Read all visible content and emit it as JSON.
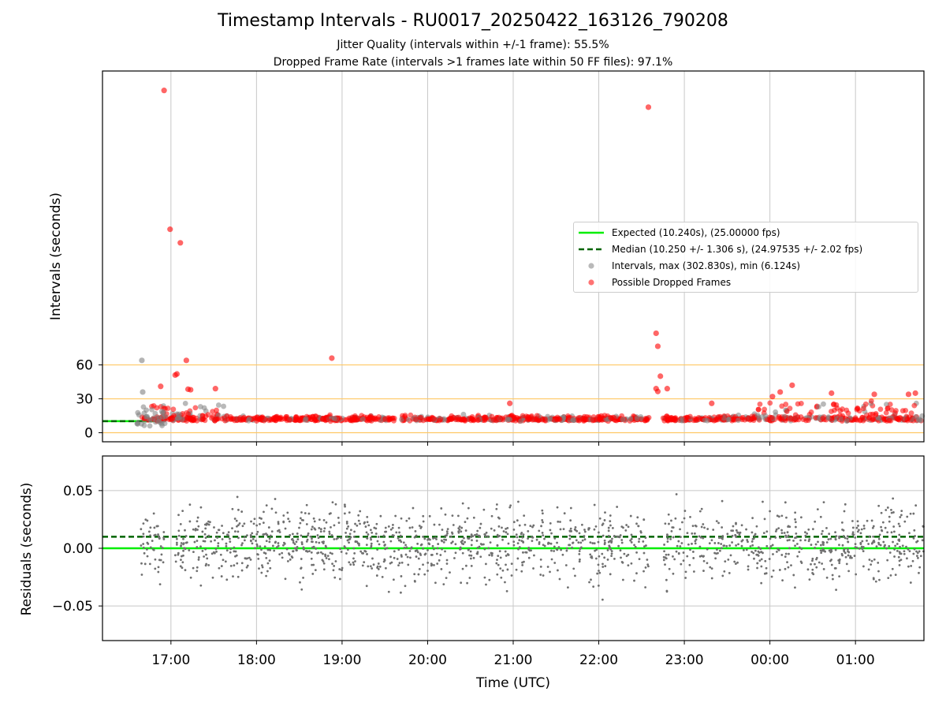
{
  "figure": {
    "title": "Timestamp Intervals - RU0017_20250422_163126_790208",
    "subtitle_1": "Jitter Quality (intervals within +/-1 frame): 55.5%",
    "subtitle_2": "Dropped Frame Rate (intervals >1 frames late within 50 FF files): 97.1%"
  },
  "colors": {
    "expected": "#00ee00",
    "median": "#006400",
    "intervals": "#808080",
    "dropped": "#ff0000",
    "frame_lines": "#ffc864",
    "grid": "#c8c8c8",
    "residual_points": "#707070"
  },
  "legend": {
    "placement": "center-right",
    "items": [
      {
        "label": "Expected (10.240s), (25.00000 fps)",
        "kind": "line-solid",
        "color": "#00ee00"
      },
      {
        "label": "Median (10.250 +/- 1.306 s), (24.97535 +/- 2.02 fps)",
        "kind": "line-dashed",
        "color": "#006400"
      },
      {
        "label": "Intervals, max (302.830s), min (6.124s)",
        "kind": "marker",
        "color": "#808080"
      },
      {
        "label": "Possible Dropped Frames",
        "kind": "marker",
        "color": "#ff0000"
      }
    ]
  },
  "chart_data": [
    {
      "type": "scatter",
      "name": "intervals",
      "ylabel": "Intervals (seconds)",
      "xlabel": "",
      "grid": "x",
      "x_range_hours": [
        16.2,
        25.8
      ],
      "x_ticks": [
        {
          "value": 17,
          "label": "17:00"
        },
        {
          "value": 18,
          "label": "18:00"
        },
        {
          "value": 19,
          "label": "19:00"
        },
        {
          "value": 20,
          "label": "20:00"
        },
        {
          "value": 21,
          "label": "21:00"
        },
        {
          "value": 22,
          "label": "22:00"
        },
        {
          "value": 23,
          "label": "23:00"
        },
        {
          "value": 24,
          "label": "00:00"
        },
        {
          "value": 25,
          "label": "01:00"
        }
      ],
      "ylim": [
        -8,
        320
      ],
      "y_ticks": [
        {
          "value": 0,
          "label": "0"
        },
        {
          "value": 30,
          "label": "30"
        },
        {
          "value": 60,
          "label": "60"
        }
      ],
      "frame_lines": [
        0,
        30,
        60
      ],
      "expected": 10.24,
      "expected_x_range": [
        16.2,
        16.9
      ],
      "median": 10.25,
      "median_x_range": [
        16.2,
        16.9
      ],
      "outliers_dropped": [
        {
          "x": 16.92,
          "y": 302.8
        },
        {
          "x": 16.99,
          "y": 180.0
        },
        {
          "x": 17.11,
          "y": 168.0
        },
        {
          "x": 22.58,
          "y": 288.0
        },
        {
          "x": 22.67,
          "y": 88.0
        },
        {
          "x": 22.69,
          "y": 76.5
        },
        {
          "x": 18.88,
          "y": 66.0
        },
        {
          "x": 17.18,
          "y": 64.0
        },
        {
          "x": 17.07,
          "y": 52.0
        },
        {
          "x": 17.05,
          "y": 51.0
        },
        {
          "x": 22.72,
          "y": 50.0
        },
        {
          "x": 16.88,
          "y": 41.0
        },
        {
          "x": 17.52,
          "y": 39.0
        },
        {
          "x": 17.2,
          "y": 38.5
        },
        {
          "x": 17.23,
          "y": 38.0
        },
        {
          "x": 22.67,
          "y": 39.0
        },
        {
          "x": 22.69,
          "y": 36.5
        },
        {
          "x": 22.8,
          "y": 39.0
        },
        {
          "x": 24.26,
          "y": 42.0
        },
        {
          "x": 24.72,
          "y": 35.0
        },
        {
          "x": 25.7,
          "y": 35.0
        },
        {
          "x": 25.62,
          "y": 34.0
        },
        {
          "x": 24.12,
          "y": 36.0
        },
        {
          "x": 24.03,
          "y": 32.0
        },
        {
          "x": 20.96,
          "y": 26.0
        },
        {
          "x": 23.32,
          "y": 26.0
        },
        {
          "x": 25.22,
          "y": 34.0
        }
      ],
      "outliers_intervals": [
        {
          "x": 16.66,
          "y": 64.0
        },
        {
          "x": 16.67,
          "y": 36.0
        }
      ]
    },
    {
      "type": "scatter",
      "name": "residuals",
      "ylabel": "Residuals (seconds)",
      "xlabel": "Time (UTC)",
      "grid": "both",
      "x_range_hours": [
        16.2,
        25.8
      ],
      "ylim": [
        -0.08,
        0.08
      ],
      "y_ticks": [
        {
          "value": -0.05,
          "label": "−0.05"
        },
        {
          "value": 0.0,
          "label": "0.00"
        },
        {
          "value": 0.05,
          "label": "0.05"
        }
      ],
      "expected": 0.0,
      "median": 0.01
    }
  ],
  "labels": {
    "x_ticks_shown_on": "residuals"
  }
}
